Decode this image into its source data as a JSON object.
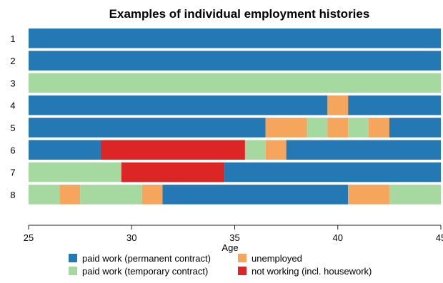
{
  "chart_data": {
    "type": "timeline",
    "title": "Examples of individual employment histories",
    "xlabel": "Age",
    "xlim": [
      25,
      45
    ],
    "xticks": [
      25,
      30,
      35,
      40,
      45
    ],
    "grid": false,
    "legend_position": "bottom",
    "states": [
      {
        "key": "perm",
        "label": "paid work (permanent contract)",
        "color": "#2479b5"
      },
      {
        "key": "unemp",
        "label": "unemployed",
        "color": "#f6a55c"
      },
      {
        "key": "temp",
        "label": "paid work (temporary contract)",
        "color": "#a5d9a0"
      },
      {
        "key": "notw",
        "label": "not working (incl. housework)",
        "color": "#dc2626"
      }
    ],
    "rows": [
      {
        "label": "1",
        "segments": [
          {
            "start": 25,
            "end": 45,
            "state": "perm"
          }
        ]
      },
      {
        "label": "2",
        "segments": [
          {
            "start": 25,
            "end": 45,
            "state": "perm"
          }
        ]
      },
      {
        "label": "3",
        "segments": [
          {
            "start": 25,
            "end": 45,
            "state": "temp"
          }
        ]
      },
      {
        "label": "4",
        "segments": [
          {
            "start": 25,
            "end": 39.5,
            "state": "perm"
          },
          {
            "start": 39.5,
            "end": 40.5,
            "state": "unemp"
          },
          {
            "start": 40.5,
            "end": 45,
            "state": "perm"
          }
        ]
      },
      {
        "label": "5",
        "segments": [
          {
            "start": 25,
            "end": 36.5,
            "state": "perm"
          },
          {
            "start": 36.5,
            "end": 38.5,
            "state": "unemp"
          },
          {
            "start": 38.5,
            "end": 39.5,
            "state": "temp"
          },
          {
            "start": 39.5,
            "end": 40.5,
            "state": "unemp"
          },
          {
            "start": 40.5,
            "end": 41.5,
            "state": "temp"
          },
          {
            "start": 41.5,
            "end": 42.5,
            "state": "unemp"
          },
          {
            "start": 42.5,
            "end": 45,
            "state": "perm"
          }
        ]
      },
      {
        "label": "6",
        "segments": [
          {
            "start": 25,
            "end": 28.5,
            "state": "perm"
          },
          {
            "start": 28.5,
            "end": 35.5,
            "state": "notw"
          },
          {
            "start": 35.5,
            "end": 36.5,
            "state": "temp"
          },
          {
            "start": 36.5,
            "end": 37.5,
            "state": "unemp"
          },
          {
            "start": 37.5,
            "end": 45,
            "state": "perm"
          }
        ]
      },
      {
        "label": "7",
        "segments": [
          {
            "start": 25,
            "end": 29.5,
            "state": "temp"
          },
          {
            "start": 29.5,
            "end": 34.5,
            "state": "notw"
          },
          {
            "start": 34.5,
            "end": 45,
            "state": "perm"
          }
        ]
      },
      {
        "label": "8",
        "segments": [
          {
            "start": 25,
            "end": 26.5,
            "state": "temp"
          },
          {
            "start": 26.5,
            "end": 27.5,
            "state": "unemp"
          },
          {
            "start": 27.5,
            "end": 30.5,
            "state": "temp"
          },
          {
            "start": 30.5,
            "end": 31.5,
            "state": "unemp"
          },
          {
            "start": 31.5,
            "end": 40.5,
            "state": "perm"
          },
          {
            "start": 40.5,
            "end": 42.5,
            "state": "unemp"
          },
          {
            "start": 42.5,
            "end": 45,
            "state": "temp"
          }
        ]
      }
    ]
  }
}
